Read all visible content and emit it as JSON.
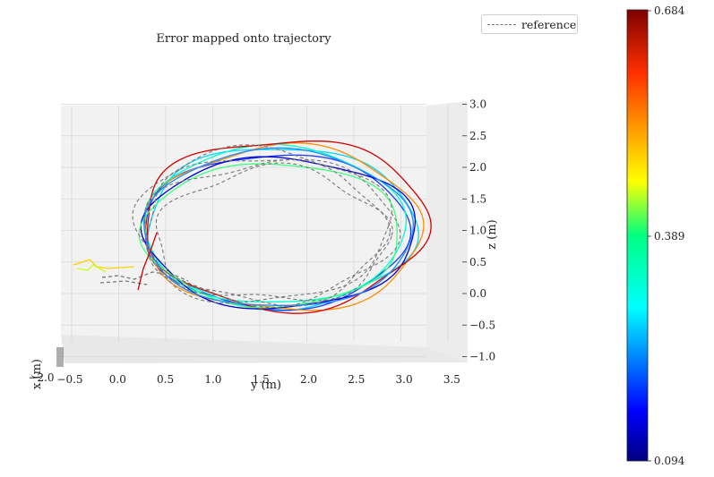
{
  "chart_data": {
    "type": "line",
    "title": "Error mapped onto trajectory",
    "legend": {
      "entries": [
        "reference"
      ],
      "placement": "top-right"
    },
    "axes": {
      "x": {
        "label": "x (m)"
      },
      "y": {
        "label": "y (m)",
        "ticks": [
          "−0.5",
          "0.0",
          "0.5",
          "1.0",
          "1.5",
          "2.0",
          "2.5",
          "3.0",
          "3.5"
        ],
        "range": [
          -0.5,
          3.5
        ]
      },
      "z": {
        "label": "z (m)",
        "ticks": [
          "−1.0",
          "−0.5",
          "0.0",
          "0.5",
          "1.0",
          "1.5",
          "2.0",
          "2.5",
          "3.0"
        ],
        "range": [
          -1.0,
          3.0
        ]
      }
    },
    "colorbar": {
      "ticks": [
        "0.684",
        "0.389",
        "0.094"
      ],
      "min": 0.094,
      "max": 0.684,
      "colormap": "jet"
    },
    "series": [
      {
        "name": "reference",
        "style": "dashed",
        "color": "#777777"
      }
    ]
  }
}
